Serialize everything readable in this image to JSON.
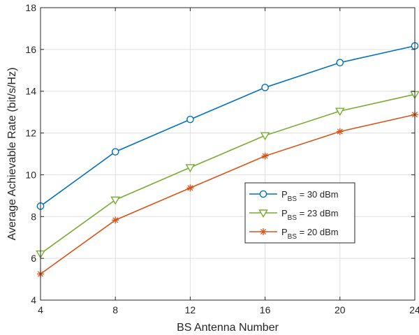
{
  "chart_data": {
    "type": "line",
    "title": "",
    "xlabel": "BS Antenna Number",
    "ylabel": "Average Achievable Rate (bit/s/Hz)",
    "x": [
      4,
      8,
      12,
      16,
      20,
      24
    ],
    "xlim": [
      4,
      24
    ],
    "ylim": [
      4,
      18
    ],
    "xticks": [
      4,
      8,
      12,
      16,
      20,
      24
    ],
    "yticks": [
      4,
      6,
      8,
      10,
      12,
      14,
      16,
      18
    ],
    "grid": true,
    "legend_position": "center-right",
    "series": [
      {
        "name": "P",
        "subscript": "BS",
        "suffix": " = 30 dBm",
        "color": "#0072BD",
        "marker": "circle",
        "values": [
          8.5,
          11.1,
          12.65,
          14.18,
          15.37,
          16.17
        ]
      },
      {
        "name": "P",
        "subscript": "BS",
        "suffix": " = 23 dBm",
        "color": "#77AC30",
        "marker": "triangle-down",
        "values": [
          6.22,
          8.8,
          10.35,
          11.88,
          13.05,
          13.85
        ]
      },
      {
        "name": "P",
        "subscript": "BS",
        "suffix": " = 20 dBm",
        "color": "#D95319",
        "marker": "asterisk",
        "values": [
          5.25,
          7.83,
          9.37,
          10.9,
          12.07,
          12.88
        ]
      }
    ]
  }
}
